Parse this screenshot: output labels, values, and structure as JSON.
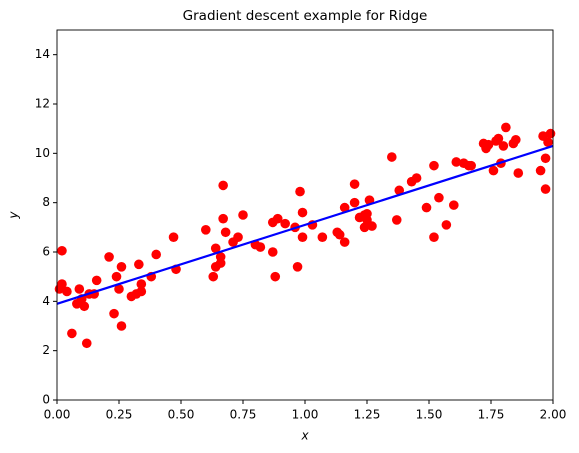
{
  "chart_data": {
    "type": "scatter",
    "title": "Gradient descent example for Ridge",
    "x_label": "x",
    "y_label": "y",
    "points": {
      "color": "#ff0000",
      "x": [
        0.01,
        0.02,
        0.02,
        0.04,
        0.06,
        0.08,
        0.09,
        0.1,
        0.11,
        0.12,
        0.13,
        0.15,
        0.16,
        0.21,
        0.23,
        0.24,
        0.25,
        0.26,
        0.26,
        0.3,
        0.32,
        0.33,
        0.34,
        0.34,
        0.38,
        0.4,
        0.47,
        0.48,
        0.6,
        0.63,
        0.64,
        0.64,
        0.66,
        0.66,
        0.67,
        0.67,
        0.68,
        0.71,
        0.73,
        0.75,
        0.8,
        0.82,
        0.87,
        0.87,
        0.88,
        0.89,
        0.92,
        0.96,
        0.97,
        0.98,
        0.99,
        0.99,
        1.03,
        1.07,
        1.13,
        1.14,
        1.16,
        1.16,
        1.2,
        1.2,
        1.22,
        1.24,
        1.24,
        1.25,
        1.25,
        1.26,
        1.27,
        1.35,
        1.37,
        1.38,
        1.43,
        1.45,
        1.49,
        1.52,
        1.52,
        1.54,
        1.57,
        1.6,
        1.61,
        1.64,
        1.66,
        1.67,
        1.72,
        1.73,
        1.74,
        1.76,
        1.77,
        1.78,
        1.79,
        1.8,
        1.81,
        1.84,
        1.85,
        1.86,
        1.95,
        1.96,
        1.97,
        1.97,
        1.98,
        1.99
      ],
      "values": [
        4.5,
        6.05,
        4.7,
        4.4,
        2.7,
        3.9,
        4.5,
        4.1,
        3.8,
        2.3,
        4.3,
        4.3,
        4.85,
        5.8,
        3.5,
        5.0,
        4.5,
        3.0,
        5.4,
        4.2,
        4.3,
        5.5,
        4.4,
        4.7,
        5.0,
        5.9,
        6.6,
        5.3,
        6.9,
        5.0,
        6.15,
        5.4,
        5.55,
        5.8,
        8.7,
        7.35,
        6.8,
        6.4,
        6.6,
        7.5,
        6.3,
        6.2,
        6.0,
        7.2,
        5.0,
        7.35,
        7.15,
        7.0,
        5.4,
        8.45,
        7.6,
        6.6,
        7.1,
        6.6,
        6.8,
        6.7,
        7.8,
        6.4,
        8.75,
        8.0,
        7.4,
        7.5,
        7.0,
        7.55,
        7.3,
        8.1,
        7.05,
        9.85,
        7.3,
        8.5,
        8.85,
        9.0,
        7.8,
        6.6,
        9.5,
        8.2,
        7.1,
        7.9,
        9.65,
        9.6,
        9.5,
        9.5,
        10.4,
        10.2,
        10.35,
        9.3,
        10.5,
        10.6,
        9.6,
        10.3,
        11.05,
        10.4,
        10.55,
        9.2,
        9.3,
        10.7,
        9.8,
        8.55,
        10.45,
        10.8
      ]
    },
    "fit_line": {
      "color": "#0000ff",
      "x": [
        0,
        2
      ],
      "values": [
        3.9,
        10.3
      ]
    },
    "xlim": [
      0,
      2
    ],
    "ylim": [
      0,
      15
    ],
    "xticks": [
      {
        "value": 0,
        "label": "0.00"
      },
      {
        "value": 0.25,
        "label": "0.25"
      },
      {
        "value": 0.5,
        "label": "0.50"
      },
      {
        "value": 0.75,
        "label": "0.75"
      },
      {
        "value": 1,
        "label": "1.00"
      },
      {
        "value": 1.25,
        "label": "1.25"
      },
      {
        "value": 1.5,
        "label": "1.50"
      },
      {
        "value": 1.75,
        "label": "1.75"
      },
      {
        "value": 2,
        "label": "2.00"
      }
    ],
    "yticks": [
      0,
      2,
      4,
      6,
      8,
      10,
      12,
      14
    ]
  }
}
